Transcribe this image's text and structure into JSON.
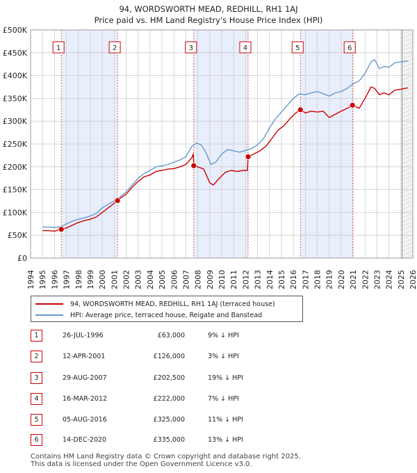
{
  "chart_data": {
    "type": "line",
    "title_line1": "94, WORDSWORTH MEAD, REDHILL, RH1 1AJ",
    "title_line2": "Price paid vs. HM Land Registry's House Price Index (HPI)",
    "x_range": [
      1994,
      2026
    ],
    "y_range": [
      0,
      500000
    ],
    "x_ticks": [
      "1994",
      "1995",
      "1996",
      "1997",
      "1998",
      "1999",
      "2000",
      "2001",
      "2002",
      "2003",
      "2004",
      "2005",
      "2006",
      "2007",
      "2008",
      "2009",
      "2010",
      "2011",
      "2012",
      "2013",
      "2014",
      "2015",
      "2016",
      "2017",
      "2018",
      "2019",
      "2020",
      "2021",
      "2022",
      "2023",
      "2024",
      "2025",
      "2026"
    ],
    "y_ticks": [
      {
        "value": 0,
        "label": "£0"
      },
      {
        "value": 50000,
        "label": "£50K"
      },
      {
        "value": 100000,
        "label": "£100K"
      },
      {
        "value": 150000,
        "label": "£150K"
      },
      {
        "value": 200000,
        "label": "£200K"
      },
      {
        "value": 250000,
        "label": "£250K"
      },
      {
        "value": 300000,
        "label": "£300K"
      },
      {
        "value": 350000,
        "label": "£350K"
      },
      {
        "value": 400000,
        "label": "£400K"
      },
      {
        "value": 450000,
        "label": "£450K"
      },
      {
        "value": 500000,
        "label": "£500K"
      }
    ],
    "shaded_periods": [
      [
        1996.57,
        2001.28
      ],
      [
        2007.66,
        2012.21
      ],
      [
        2016.59,
        2020.95
      ]
    ],
    "forecast_start": 2025.1,
    "series": [
      {
        "name": "94, WORDSWORTH MEAD, REDHILL, RH1 1AJ (terraced house)",
        "color": "#cc0000",
        "points": [
          [
            1995.0,
            60000
          ],
          [
            1995.5,
            60000
          ],
          [
            1996.0,
            59000
          ],
          [
            1996.57,
            63000
          ],
          [
            1997.0,
            66000
          ],
          [
            1997.5,
            72000
          ],
          [
            1998.0,
            78000
          ],
          [
            1998.5,
            82000
          ],
          [
            1999.0,
            85000
          ],
          [
            1999.5,
            90000
          ],
          [
            2000.0,
            100000
          ],
          [
            2000.5,
            110000
          ],
          [
            2001.0,
            120000
          ],
          [
            2001.28,
            126000
          ],
          [
            2001.5,
            131000
          ],
          [
            2002.0,
            140000
          ],
          [
            2002.5,
            155000
          ],
          [
            2003.0,
            168000
          ],
          [
            2003.5,
            178000
          ],
          [
            2004.0,
            182000
          ],
          [
            2004.5,
            190000
          ],
          [
            2005.0,
            192000
          ],
          [
            2005.5,
            195000
          ],
          [
            2006.0,
            196000
          ],
          [
            2006.5,
            200000
          ],
          [
            2007.0,
            205000
          ],
          [
            2007.5,
            220000
          ],
          [
            2007.62,
            228000
          ],
          [
            2007.66,
            202500
          ],
          [
            2008.0,
            200000
          ],
          [
            2008.5,
            195000
          ],
          [
            2009.0,
            165000
          ],
          [
            2009.3,
            160000
          ],
          [
            2009.8,
            175000
          ],
          [
            2010.3,
            188000
          ],
          [
            2010.8,
            192000
          ],
          [
            2011.3,
            190000
          ],
          [
            2011.8,
            192000
          ],
          [
            2012.15,
            192000
          ],
          [
            2012.21,
            222000
          ],
          [
            2012.7,
            228000
          ],
          [
            2013.2,
            235000
          ],
          [
            2013.7,
            245000
          ],
          [
            2014.2,
            262000
          ],
          [
            2014.7,
            280000
          ],
          [
            2015.2,
            290000
          ],
          [
            2015.7,
            305000
          ],
          [
            2016.2,
            318000
          ],
          [
            2016.59,
            325000
          ],
          [
            2017.0,
            318000
          ],
          [
            2017.5,
            322000
          ],
          [
            2018.0,
            320000
          ],
          [
            2018.5,
            322000
          ],
          [
            2019.0,
            308000
          ],
          [
            2019.5,
            315000
          ],
          [
            2020.0,
            322000
          ],
          [
            2020.5,
            328000
          ],
          [
            2020.95,
            335000
          ],
          [
            2021.5,
            328000
          ],
          [
            2022.0,
            350000
          ],
          [
            2022.5,
            375000
          ],
          [
            2022.8,
            372000
          ],
          [
            2023.2,
            358000
          ],
          [
            2023.6,
            362000
          ],
          [
            2024.0,
            358000
          ],
          [
            2024.5,
            368000
          ],
          [
            2025.0,
            370000
          ],
          [
            2025.6,
            373000
          ]
        ]
      },
      {
        "name": "HPI: Average price, terraced house, Reigate and Banstead",
        "color": "#6699cc",
        "points": [
          [
            1995.0,
            68000
          ],
          [
            1995.5,
            68000
          ],
          [
            1996.0,
            67000
          ],
          [
            1996.57,
            69000
          ],
          [
            1997.0,
            75000
          ],
          [
            1997.5,
            81000
          ],
          [
            1998.0,
            85000
          ],
          [
            1998.5,
            88000
          ],
          [
            1999.0,
            92000
          ],
          [
            1999.5,
            98000
          ],
          [
            2000.0,
            110000
          ],
          [
            2000.5,
            118000
          ],
          [
            2001.0,
            125000
          ],
          [
            2001.28,
            130000
          ],
          [
            2001.5,
            134000
          ],
          [
            2002.0,
            145000
          ],
          [
            2002.5,
            160000
          ],
          [
            2003.0,
            175000
          ],
          [
            2003.5,
            185000
          ],
          [
            2004.0,
            192000
          ],
          [
            2004.5,
            200000
          ],
          [
            2005.0,
            202000
          ],
          [
            2005.5,
            205000
          ],
          [
            2006.0,
            210000
          ],
          [
            2006.5,
            215000
          ],
          [
            2007.0,
            222000
          ],
          [
            2007.5,
            245000
          ],
          [
            2007.9,
            252000
          ],
          [
            2008.3,
            248000
          ],
          [
            2008.7,
            230000
          ],
          [
            2009.1,
            205000
          ],
          [
            2009.5,
            210000
          ],
          [
            2010.0,
            228000
          ],
          [
            2010.5,
            238000
          ],
          [
            2011.0,
            235000
          ],
          [
            2011.5,
            232000
          ],
          [
            2012.0,
            236000
          ],
          [
            2012.5,
            240000
          ],
          [
            2013.0,
            248000
          ],
          [
            2013.5,
            262000
          ],
          [
            2014.0,
            285000
          ],
          [
            2014.5,
            305000
          ],
          [
            2015.0,
            320000
          ],
          [
            2015.5,
            335000
          ],
          [
            2016.0,
            350000
          ],
          [
            2016.5,
            360000
          ],
          [
            2017.0,
            358000
          ],
          [
            2017.5,
            362000
          ],
          [
            2018.0,
            365000
          ],
          [
            2018.5,
            360000
          ],
          [
            2019.0,
            355000
          ],
          [
            2019.5,
            362000
          ],
          [
            2020.0,
            365000
          ],
          [
            2020.5,
            372000
          ],
          [
            2021.0,
            382000
          ],
          [
            2021.5,
            388000
          ],
          [
            2022.0,
            405000
          ],
          [
            2022.5,
            430000
          ],
          [
            2022.8,
            435000
          ],
          [
            2023.2,
            415000
          ],
          [
            2023.6,
            420000
          ],
          [
            2024.0,
            418000
          ],
          [
            2024.5,
            428000
          ],
          [
            2025.0,
            430000
          ],
          [
            2025.6,
            432000
          ]
        ]
      }
    ],
    "sales": [
      {
        "label": "1",
        "x": 1996.57,
        "price": 63000
      },
      {
        "label": "2",
        "x": 2001.28,
        "price": 126000
      },
      {
        "label": "3",
        "x": 2007.66,
        "price": 202500
      },
      {
        "label": "4",
        "x": 2012.21,
        "price": 222000
      },
      {
        "label": "5",
        "x": 2016.59,
        "price": 325000
      },
      {
        "label": "6",
        "x": 2020.95,
        "price": 335000
      }
    ]
  },
  "legend": {
    "property_label": "94, WORDSWORTH MEAD, REDHILL, RH1 1AJ (terraced house)",
    "hpi_label": "HPI: Average price, terraced house, Reigate and Banstead"
  },
  "transactions": [
    {
      "num": "1",
      "date": "26-JUL-1996",
      "price": "£63,000",
      "hpi": "9% ↓ HPI"
    },
    {
      "num": "2",
      "date": "12-APR-2001",
      "price": "£126,000",
      "hpi": "3% ↓ HPI"
    },
    {
      "num": "3",
      "date": "29-AUG-2007",
      "price": "£202,500",
      "hpi": "19% ↓ HPI"
    },
    {
      "num": "4",
      "date": "16-MAR-2012",
      "price": "£222,000",
      "hpi": "7% ↓ HPI"
    },
    {
      "num": "5",
      "date": "05-AUG-2016",
      "price": "£325,000",
      "hpi": "11% ↓ HPI"
    },
    {
      "num": "6",
      "date": "14-DEC-2020",
      "price": "£335,000",
      "hpi": "13% ↓ HPI"
    }
  ],
  "footer": {
    "line1": "Contains HM Land Registry data © Crown copyright and database right 2025.",
    "line2": "This data is licensed under the Open Government Licence v3.0."
  },
  "colors": {
    "property": "#cc0000",
    "hpi": "#6699cc",
    "shade": "#e8eefb",
    "grid": "#cccccc"
  }
}
